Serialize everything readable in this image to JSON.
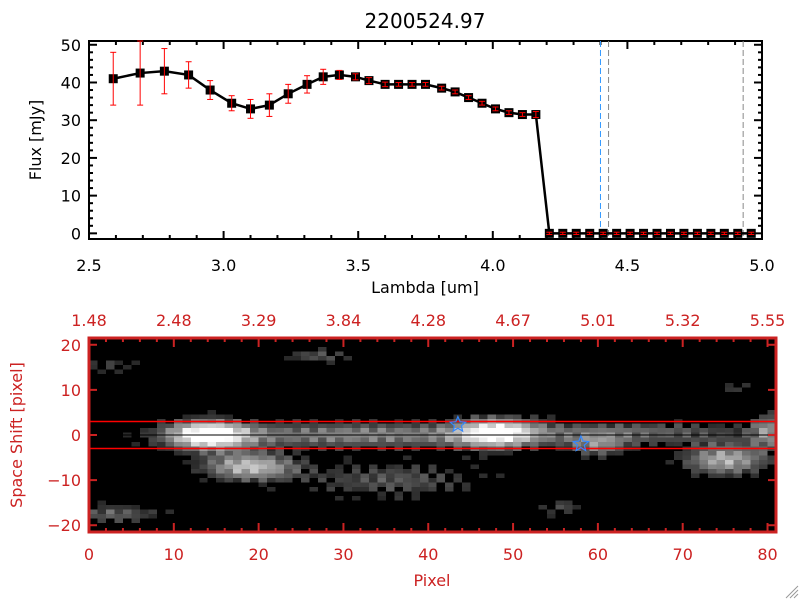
{
  "chart_data": [
    {
      "type": "line",
      "title": "2200524.97",
      "xlabel": "Lambda [um]",
      "ylabel": "Flux [mJy]",
      "xlim": [
        2.5,
        5.0
      ],
      "ylim": [
        -1.5,
        51
      ],
      "xticks": [
        "2.5",
        "3.0",
        "3.5",
        "4.0",
        "4.5",
        "5.0"
      ],
      "yticks": [
        "0",
        "10",
        "20",
        "30",
        "40",
        "50"
      ],
      "series": [
        {
          "name": "flux",
          "x": [
            2.59,
            2.69,
            2.78,
            2.87,
            2.95,
            3.03,
            3.1,
            3.17,
            3.24,
            3.31,
            3.37,
            3.43,
            3.49,
            3.54,
            3.6,
            3.65,
            3.7,
            3.75,
            3.81,
            3.86,
            3.91,
            3.96,
            4.01,
            4.06,
            4.11,
            4.16,
            4.21,
            4.26,
            4.31,
            4.36,
            4.41,
            4.46,
            4.51,
            4.56,
            4.61,
            4.66,
            4.71,
            4.76,
            4.81,
            4.86,
            4.91,
            4.96
          ],
          "y": [
            41,
            42.5,
            43,
            42,
            38,
            34.5,
            33,
            34,
            37,
            39.5,
            41.5,
            42,
            41.5,
            40.5,
            39.5,
            39.5,
            39.5,
            39.5,
            38.5,
            37.5,
            36,
            34.5,
            33,
            32,
            31.5,
            31.5,
            0,
            0,
            0,
            0,
            0,
            0,
            0,
            0,
            0,
            0,
            0,
            0,
            0,
            0,
            0,
            0
          ],
          "yerr": [
            7,
            8.5,
            6,
            3.5,
            2.5,
            2,
            2.5,
            3,
            2.5,
            2.3,
            2,
            1.2,
            0.8,
            0.8,
            0.6,
            0.5,
            0.5,
            0.5,
            0.5,
            0.5,
            0.5,
            0.5,
            0.5,
            0.5,
            0.5,
            0.8,
            0.3,
            0.3,
            0.3,
            0.3,
            0.3,
            0.3,
            0.3,
            0.3,
            0.3,
            0.3,
            0.3,
            0.3,
            0.3,
            0.3,
            0.3,
            0.3
          ]
        }
      ],
      "vlines": [
        {
          "x": 4.4,
          "color": "#3399ff"
        },
        {
          "x": 4.43,
          "color": "#888888"
        },
        {
          "x": 4.93,
          "color": "#888888"
        }
      ],
      "colors": {
        "line": "#000000",
        "errorbar": "#ff0000"
      }
    },
    {
      "type": "heatmap",
      "xlabel": "Pixel",
      "ylabel": "Space Shift [pixel]",
      "xlim": [
        0,
        81
      ],
      "ylim": [
        -21.5,
        21.5
      ],
      "xticks": [
        "0",
        "10",
        "20",
        "30",
        "40",
        "50",
        "60",
        "70",
        "80"
      ],
      "yticks": [
        "20",
        "10",
        "0",
        "-10",
        "-20"
      ],
      "top_xticks": [
        "1.48",
        "2.48",
        "3.29",
        "3.84",
        "4.28",
        "4.67",
        "5.01",
        "5.32",
        "5.55"
      ],
      "aperture_lines": [
        3,
        -3
      ],
      "center_line": 0,
      "stars": [
        {
          "x": 43.5,
          "y": 2.3
        },
        {
          "x": 58,
          "y": -2
        }
      ],
      "sources": [
        {
          "x": 14,
          "y": 0,
          "sx": 3.5,
          "sy": 2.3,
          "amp": 1.0
        },
        {
          "x": 32,
          "y": 0,
          "sx": 14,
          "sy": 2.0,
          "amp": 0.55
        },
        {
          "x": 48,
          "y": 0.5,
          "sx": 3.5,
          "sy": 2.5,
          "amp": 0.8
        },
        {
          "x": 65,
          "y": 0.5,
          "sx": 10,
          "sy": 1.8,
          "amp": 0.4
        },
        {
          "x": 19,
          "y": -7,
          "sx": 4,
          "sy": 2.2,
          "amp": 0.75
        },
        {
          "x": 36,
          "y": -10,
          "sx": 8,
          "sy": 3,
          "amp": 0.35
        },
        {
          "x": 75,
          "y": -5.5,
          "sx": 3.5,
          "sy": 2.5,
          "amp": 0.7
        },
        {
          "x": 60,
          "y": -2.5,
          "sx": 2.5,
          "sy": 1.8,
          "amp": 0.45
        },
        {
          "x": 27,
          "y": 17.5,
          "sx": 3,
          "sy": 1.2,
          "amp": 0.35
        },
        {
          "x": 3,
          "y": -17.5,
          "sx": 4,
          "sy": 1.5,
          "amp": 0.4
        },
        {
          "x": 3,
          "y": 15.5,
          "sx": 2.5,
          "sy": 1.5,
          "amp": 0.25
        },
        {
          "x": 80,
          "y": 1,
          "sx": 1.5,
          "sy": 3,
          "amp": 0.5
        },
        {
          "x": 56,
          "y": -16,
          "sx": 2,
          "sy": 1.5,
          "amp": 0.3
        },
        {
          "x": 76,
          "y": 10,
          "sx": 2,
          "sy": 1.2,
          "amp": 0.25
        }
      ],
      "colors": {
        "axis": "#cc2222",
        "aperture": "#ff0000",
        "star": "#3388ff"
      }
    }
  ]
}
